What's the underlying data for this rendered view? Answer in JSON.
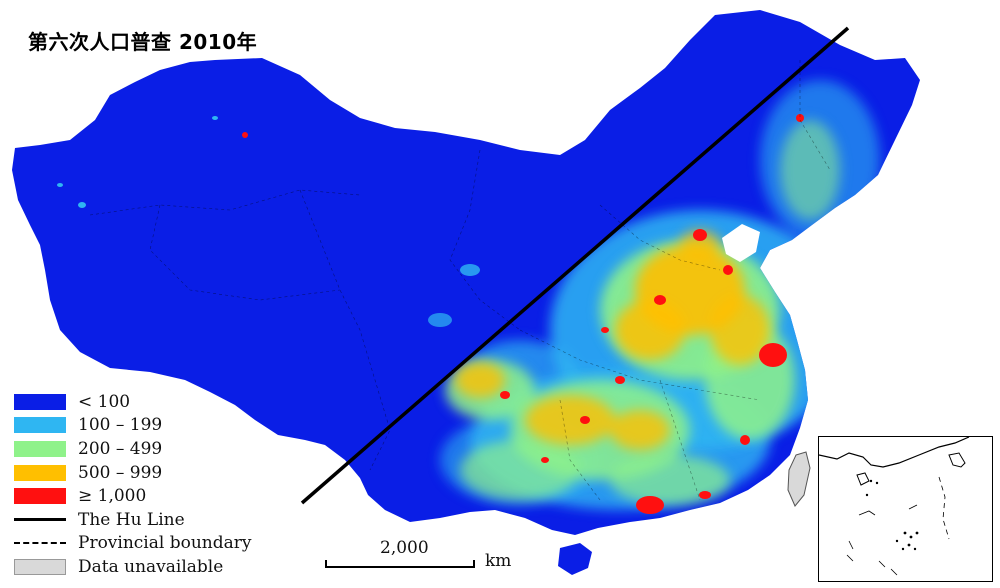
{
  "title": "第六次人口普查 2010年",
  "legend": {
    "items": [
      {
        "label": "< 100",
        "color": "#0a1ee6"
      },
      {
        "label": "100 – 199",
        "color": "#2fb6f2"
      },
      {
        "label": "200 – 499",
        "color": "#8ff28a"
      },
      {
        "label": "500 – 999",
        "color": "#ffbf00"
      },
      {
        "label": "≥ 1,000",
        "color": "#ff1010"
      },
      {
        "label": "The Hu Line",
        "symbol": "solid-line"
      },
      {
        "label": "Provincial boundary",
        "symbol": "dashed-line"
      },
      {
        "label": "Data unavailable",
        "symbol": "gray-box",
        "color": "#d9d9d9"
      }
    ]
  },
  "scale": {
    "value": "2,000",
    "unit": "km"
  },
  "colors": {
    "base": "#0a1ee6",
    "light_blue": "#2fb6f2",
    "green": "#8ff28a",
    "orange": "#ffbf00",
    "red": "#ff1010"
  }
}
